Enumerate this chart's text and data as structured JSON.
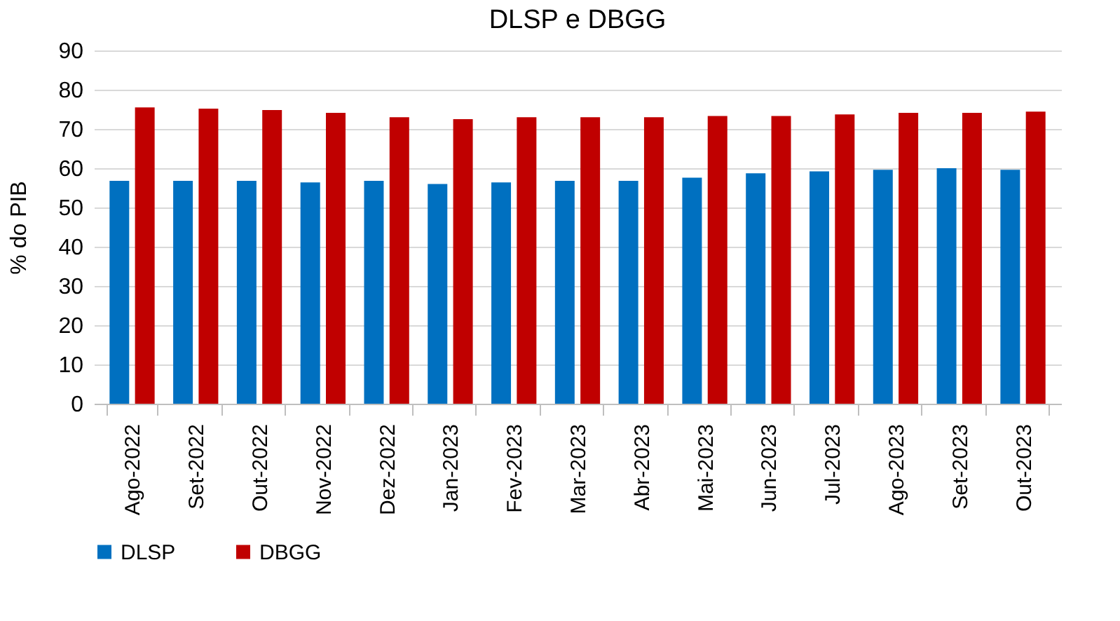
{
  "chart_data": {
    "type": "bar",
    "title": "DLSP e DBGG",
    "ylabel": "% do PIB",
    "categories": [
      "Ago-2022",
      "Set-2022",
      "Out-2022",
      "Nov-2022",
      "Dez-2022",
      "Jan-2023",
      "Fev-2023",
      "Mar-2023",
      "Abr-2023",
      "Mai-2023",
      "Jun-2023",
      "Jul-2023",
      "Ago-2023",
      "Set-2023",
      "Out-2023"
    ],
    "series": [
      {
        "name": "DLSP",
        "color": "#0070c0",
        "values": [
          56.8,
          56.8,
          56.8,
          56.4,
          56.8,
          56.0,
          56.4,
          56.8,
          56.8,
          57.6,
          58.7,
          59.2,
          59.6,
          60.0,
          59.6
        ]
      },
      {
        "name": "DBGG",
        "color": "#c00000",
        "values": [
          75.5,
          75.2,
          74.8,
          74.1,
          73.0,
          72.5,
          73.0,
          73.0,
          73.0,
          73.3,
          73.3,
          73.7,
          74.1,
          74.1,
          74.4
        ]
      }
    ],
    "ylim": [
      0,
      90
    ],
    "yticks": [
      0,
      10,
      20,
      30,
      40,
      50,
      60,
      70,
      80,
      90
    ],
    "grid": "y",
    "legend": "bottom"
  }
}
